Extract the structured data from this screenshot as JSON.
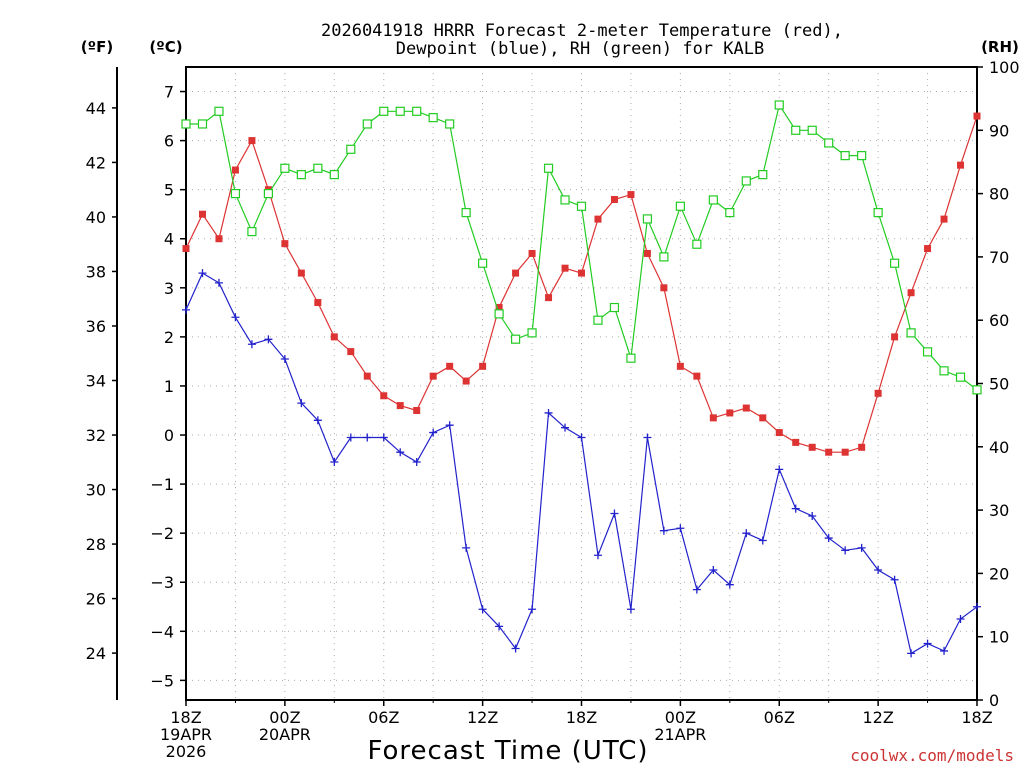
{
  "chart_data": {
    "type": "line",
    "title_line1": "2026041918 HRRR Forecast 2-meter Temperature (red),",
    "title_line2": "Dewpoint (blue), RH (green) for KALB",
    "xlabel": "Forecast Time (UTC)",
    "credit": "coolwx.com/models",
    "units": {
      "fahrenheit": "(ºF)",
      "celsius": "(ºC)",
      "rh": "(RH)"
    },
    "x_unit": "forecast hour",
    "xlim": [
      0,
      48
    ],
    "celsius_lim": [
      -5.4,
      7.5
    ],
    "rh_lim": [
      0,
      100
    ],
    "celsius_ticks": [
      7,
      6,
      5,
      4,
      3,
      2,
      1,
      0,
      -1,
      -2,
      -3,
      -4,
      -5
    ],
    "fahrenheit_ticks": [
      44,
      42,
      40,
      38,
      36,
      34,
      32,
      30,
      28,
      26,
      24
    ],
    "rh_ticks": [
      100,
      90,
      80,
      70,
      60,
      50,
      40,
      30,
      20,
      10,
      0
    ],
    "x_ticks": [
      {
        "x": 0,
        "lines": [
          "18Z",
          "19APR",
          "2026"
        ]
      },
      {
        "x": 6,
        "lines": [
          "00Z",
          "20APR"
        ]
      },
      {
        "x": 12,
        "lines": [
          "06Z"
        ]
      },
      {
        "x": 18,
        "lines": [
          "12Z"
        ]
      },
      {
        "x": 24,
        "lines": [
          "18Z"
        ]
      },
      {
        "x": 30,
        "lines": [
          "00Z",
          "21APR"
        ]
      },
      {
        "x": 36,
        "lines": [
          "06Z"
        ]
      },
      {
        "x": 42,
        "lines": [
          "12Z"
        ]
      },
      {
        "x": 48,
        "lines": [
          "18Z"
        ]
      }
    ],
    "series": [
      {
        "color": "#dd3333",
        "marker": "filled-square",
        "axis": "celsius",
        "values": [
          3.8,
          4.5,
          4.0,
          5.4,
          6.0,
          5.0,
          3.9,
          3.3,
          2.7,
          2.0,
          1.7,
          1.2,
          0.8,
          0.6,
          0.5,
          1.2,
          1.4,
          1.1,
          1.4,
          2.6,
          3.3,
          3.7,
          2.8,
          3.4,
          3.3,
          4.4,
          4.8,
          4.9,
          3.7,
          3.0,
          1.4,
          1.2,
          0.35,
          0.45,
          0.55,
          0.35,
          0.05,
          -0.15,
          -0.25,
          -0.35,
          -0.35,
          -0.25,
          0.85,
          2.0,
          2.9,
          3.8,
          4.4,
          5.5,
          6.5
        ]
      },
      {
        "color": "#2222cc",
        "marker": "plus",
        "axis": "celsius",
        "values": [
          2.55,
          3.3,
          3.1,
          2.4,
          1.85,
          1.95,
          1.55,
          0.65,
          0.3,
          -0.55,
          -0.05,
          -0.05,
          -0.05,
          -0.35,
          -0.55,
          0.05,
          0.2,
          -2.3,
          -3.55,
          -3.9,
          -4.35,
          -3.55,
          0.45,
          0.15,
          -0.05,
          -2.45,
          -1.6,
          -3.55,
          -0.05,
          -1.95,
          -1.9,
          -3.15,
          -2.75,
          -3.05,
          -2.0,
          -2.15,
          -0.7,
          -1.5,
          -1.65,
          -2.1,
          -2.35,
          -2.3,
          -2.75,
          -2.95,
          -4.45,
          -4.25,
          -4.4,
          -3.75,
          -3.5
        ]
      },
      {
        "color": "#22cc22",
        "marker": "open-square",
        "axis": "rh",
        "values": [
          91,
          91,
          93,
          80,
          74,
          80,
          84,
          83,
          84,
          83,
          87,
          91,
          93,
          93,
          93,
          92,
          91,
          77,
          69,
          61,
          57,
          58,
          84,
          79,
          78,
          60,
          62,
          54,
          76,
          70,
          78,
          72,
          79,
          77,
          82,
          83,
          94,
          90,
          90,
          88,
          86,
          86,
          77,
          69,
          58,
          55,
          52,
          51,
          49
        ]
      }
    ]
  }
}
